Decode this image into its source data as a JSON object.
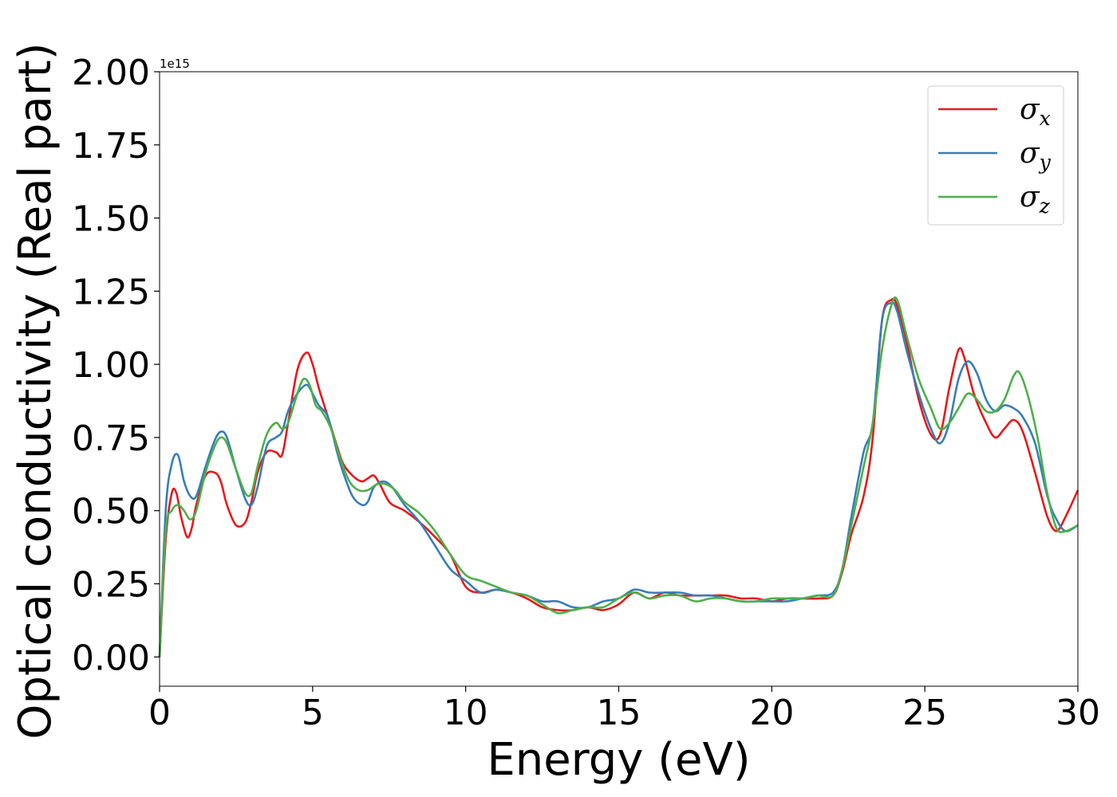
{
  "chart_data": {
    "type": "line",
    "xlabel": "Energy (eV)",
    "ylabel": "Optical conductivity (Real part)",
    "y_offset_label": "1e15",
    "xlim": [
      0,
      30
    ],
    "ylim": [
      -0.1,
      2.0
    ],
    "y_scale_factor": 1000000000000000.0,
    "xticks": [
      0,
      5,
      10,
      15,
      20,
      25,
      30
    ],
    "xtick_labels": [
      "0",
      "5",
      "10",
      "15",
      "20",
      "25",
      "30"
    ],
    "yticks": [
      0.0,
      0.25,
      0.5,
      0.75,
      1.0,
      1.25,
      1.5,
      1.75,
      2.0
    ],
    "ytick_labels": [
      "0.00",
      "0.25",
      "0.50",
      "0.75",
      "1.00",
      "1.25",
      "1.50",
      "1.75",
      "2.00"
    ],
    "grid": false,
    "legend_position": "top-right",
    "series": [
      {
        "name": "σx",
        "symbol": "σ",
        "subscript": "x",
        "color": "#e41a1c",
        "x": [
          0,
          0.2,
          0.4,
          0.55,
          0.7,
          0.9,
          1.05,
          1.2,
          1.5,
          1.8,
          2.0,
          2.2,
          2.5,
          2.8,
          3.0,
          3.2,
          3.5,
          3.8,
          4.0,
          4.2,
          4.5,
          4.8,
          5.0,
          5.2,
          5.5,
          5.8,
          6.0,
          6.3,
          6.6,
          6.8,
          7.0,
          7.2,
          7.5,
          7.8,
          8.0,
          8.5,
          9.0,
          9.5,
          10.0,
          10.5,
          11.0,
          11.5,
          12.0,
          12.5,
          13.0,
          13.5,
          14.0,
          14.5,
          15.0,
          15.5,
          16.0,
          16.5,
          17.0,
          17.5,
          18.0,
          18.5,
          19.0,
          19.5,
          20.0,
          20.5,
          21.0,
          21.5,
          22.0,
          22.3,
          22.6,
          23.0,
          23.3,
          23.6,
          23.9,
          24.1,
          24.4,
          24.8,
          25.2,
          25.5,
          25.8,
          26.1,
          26.3,
          26.6,
          27.0,
          27.3,
          27.6,
          27.9,
          28.2,
          28.6,
          29.0,
          29.3,
          29.6,
          30.0
        ],
        "y": [
          0.0,
          0.4,
          0.56,
          0.56,
          0.48,
          0.41,
          0.44,
          0.52,
          0.62,
          0.63,
          0.6,
          0.52,
          0.45,
          0.46,
          0.53,
          0.63,
          0.7,
          0.7,
          0.69,
          0.8,
          0.98,
          1.04,
          1.0,
          0.92,
          0.82,
          0.72,
          0.66,
          0.62,
          0.6,
          0.61,
          0.62,
          0.59,
          0.53,
          0.51,
          0.5,
          0.46,
          0.41,
          0.35,
          0.24,
          0.22,
          0.23,
          0.22,
          0.2,
          0.17,
          0.16,
          0.16,
          0.17,
          0.16,
          0.18,
          0.22,
          0.2,
          0.22,
          0.21,
          0.21,
          0.21,
          0.21,
          0.2,
          0.2,
          0.19,
          0.2,
          0.2,
          0.2,
          0.21,
          0.29,
          0.42,
          0.55,
          0.75,
          1.15,
          1.22,
          1.2,
          1.08,
          0.88,
          0.76,
          0.76,
          0.92,
          1.05,
          1.02,
          0.9,
          0.8,
          0.75,
          0.78,
          0.81,
          0.77,
          0.63,
          0.48,
          0.43,
          0.48,
          0.57
        ]
      },
      {
        "name": "σy",
        "symbol": "σ",
        "subscript": "y",
        "color": "#377eb8",
        "x": [
          0,
          0.2,
          0.4,
          0.6,
          0.8,
          1.0,
          1.2,
          1.5,
          1.8,
          2.0,
          2.2,
          2.5,
          2.8,
          3.0,
          3.2,
          3.5,
          3.8,
          4.0,
          4.2,
          4.5,
          4.8,
          5.0,
          5.2,
          5.5,
          5.8,
          6.0,
          6.3,
          6.6,
          6.8,
          7.0,
          7.3,
          7.6,
          8.0,
          8.5,
          9.0,
          9.5,
          10.0,
          10.5,
          11.0,
          11.5,
          12.0,
          12.5,
          13.0,
          13.5,
          14.0,
          14.5,
          15.0,
          15.5,
          16.0,
          16.5,
          17.0,
          17.5,
          18.0,
          18.5,
          19.0,
          19.5,
          20.0,
          20.5,
          21.0,
          21.5,
          22.0,
          22.3,
          22.6,
          23.0,
          23.3,
          23.6,
          23.9,
          24.1,
          24.4,
          24.8,
          25.2,
          25.5,
          25.8,
          26.1,
          26.4,
          26.7,
          27.0,
          27.3,
          27.6,
          27.9,
          28.2,
          28.6,
          29.0,
          29.3,
          29.6,
          30.0
        ],
        "y": [
          0.0,
          0.5,
          0.66,
          0.69,
          0.6,
          0.55,
          0.55,
          0.65,
          0.74,
          0.77,
          0.75,
          0.64,
          0.54,
          0.52,
          0.58,
          0.72,
          0.75,
          0.77,
          0.84,
          0.9,
          0.93,
          0.9,
          0.86,
          0.82,
          0.7,
          0.63,
          0.55,
          0.52,
          0.53,
          0.58,
          0.6,
          0.58,
          0.52,
          0.46,
          0.38,
          0.3,
          0.26,
          0.22,
          0.23,
          0.22,
          0.21,
          0.19,
          0.19,
          0.17,
          0.17,
          0.19,
          0.2,
          0.23,
          0.22,
          0.22,
          0.22,
          0.21,
          0.21,
          0.2,
          0.19,
          0.19,
          0.19,
          0.19,
          0.2,
          0.21,
          0.22,
          0.3,
          0.48,
          0.7,
          0.8,
          1.15,
          1.21,
          1.18,
          1.05,
          0.9,
          0.78,
          0.73,
          0.8,
          0.95,
          1.01,
          0.97,
          0.88,
          0.84,
          0.86,
          0.85,
          0.82,
          0.73,
          0.55,
          0.47,
          0.43,
          0.45
        ]
      },
      {
        "name": "σz",
        "symbol": "σ",
        "subscript": "z",
        "color": "#4daf4a",
        "x": [
          0,
          0.2,
          0.4,
          0.6,
          0.8,
          1.0,
          1.2,
          1.5,
          1.8,
          2.0,
          2.2,
          2.5,
          2.8,
          3.0,
          3.2,
          3.5,
          3.8,
          4.0,
          4.2,
          4.5,
          4.7,
          4.9,
          5.1,
          5.3,
          5.6,
          5.9,
          6.2,
          6.5,
          6.8,
          7.1,
          7.4,
          7.7,
          8.0,
          8.5,
          9.0,
          9.5,
          10.0,
          10.5,
          11.0,
          11.5,
          12.0,
          12.5,
          13.0,
          13.5,
          14.0,
          14.5,
          15.0,
          15.5,
          16.0,
          16.5,
          17.0,
          17.5,
          18.0,
          18.5,
          19.0,
          19.5,
          20.0,
          20.5,
          21.0,
          21.5,
          22.0,
          22.3,
          22.6,
          23.0,
          23.3,
          23.6,
          23.9,
          24.1,
          24.4,
          24.8,
          25.2,
          25.5,
          25.8,
          26.1,
          26.4,
          26.7,
          27.0,
          27.3,
          27.6,
          27.9,
          28.1,
          28.4,
          28.7,
          29.0,
          29.3,
          29.6,
          30.0
        ],
        "y": [
          0.0,
          0.43,
          0.5,
          0.52,
          0.5,
          0.47,
          0.5,
          0.63,
          0.72,
          0.75,
          0.73,
          0.64,
          0.56,
          0.56,
          0.65,
          0.76,
          0.8,
          0.78,
          0.8,
          0.9,
          0.95,
          0.93,
          0.86,
          0.84,
          0.78,
          0.68,
          0.6,
          0.57,
          0.57,
          0.59,
          0.59,
          0.57,
          0.53,
          0.49,
          0.43,
          0.35,
          0.28,
          0.26,
          0.24,
          0.22,
          0.21,
          0.18,
          0.15,
          0.16,
          0.17,
          0.17,
          0.2,
          0.22,
          0.2,
          0.21,
          0.21,
          0.19,
          0.2,
          0.2,
          0.19,
          0.19,
          0.2,
          0.2,
          0.2,
          0.21,
          0.21,
          0.3,
          0.45,
          0.65,
          0.8,
          1.05,
          1.2,
          1.22,
          1.1,
          0.95,
          0.85,
          0.78,
          0.8,
          0.85,
          0.9,
          0.88,
          0.84,
          0.84,
          0.88,
          0.96,
          0.97,
          0.88,
          0.74,
          0.56,
          0.44,
          0.43,
          0.45
        ]
      }
    ]
  }
}
